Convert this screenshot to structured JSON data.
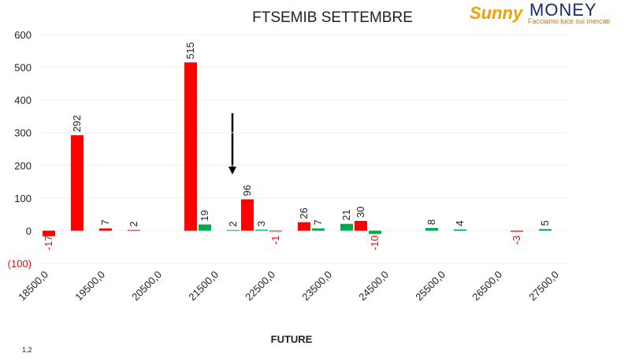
{
  "chart_data": {
    "type": "bar",
    "title": "FTSEMIB SETTEMBRE",
    "x_label": "FUTURE",
    "footnote": "1,2",
    "logo": {
      "brand_left": "Sunny",
      "brand_right": "MONEY",
      "tagline": "Facciamo luce sui mercati"
    },
    "categories": [
      "18500,0",
      null,
      null,
      null,
      "19500,0",
      null,
      null,
      null,
      "20500,0",
      null,
      null,
      null,
      "21500,0",
      null,
      null,
      null,
      "22500,0",
      null,
      null,
      null,
      "23500,0",
      null,
      null,
      null,
      "24500,0",
      null,
      null,
      null,
      "25500,0",
      null,
      null,
      null,
      "26500,0",
      null,
      null,
      null,
      "27500,0"
    ],
    "values": [
      -17,
      null,
      292,
      null,
      7,
      null,
      2,
      null,
      null,
      null,
      515,
      19,
      null,
      2,
      96,
      3,
      -1,
      null,
      26,
      7,
      null,
      21,
      30,
      -10,
      null,
      null,
      null,
      8,
      null,
      4,
      null,
      null,
      null,
      -3,
      null,
      5,
      null
    ],
    "colors": [
      "#ff0000",
      null,
      "#ff0000",
      null,
      "#ff0000",
      null,
      "#ff0000",
      null,
      null,
      null,
      "#ff0000",
      "#00a84f",
      null,
      "#00a84f",
      "#ff0000",
      "#00a84f",
      "#ff0000",
      null,
      "#ff0000",
      "#00a84f",
      null,
      "#00a84f",
      "#ff0000",
      "#00a84f",
      null,
      null,
      null,
      "#00a84f",
      null,
      "#00a84f",
      null,
      null,
      null,
      "#ff0000",
      null,
      "#00a84f",
      null
    ],
    "negative_label_color": "#ff0000",
    "ylim": [
      -100,
      600
    ],
    "yticks": [
      {
        "value": -100,
        "label": "(100)"
      },
      0,
      100,
      200,
      300,
      400,
      500,
      600
    ],
    "grid": true
  }
}
